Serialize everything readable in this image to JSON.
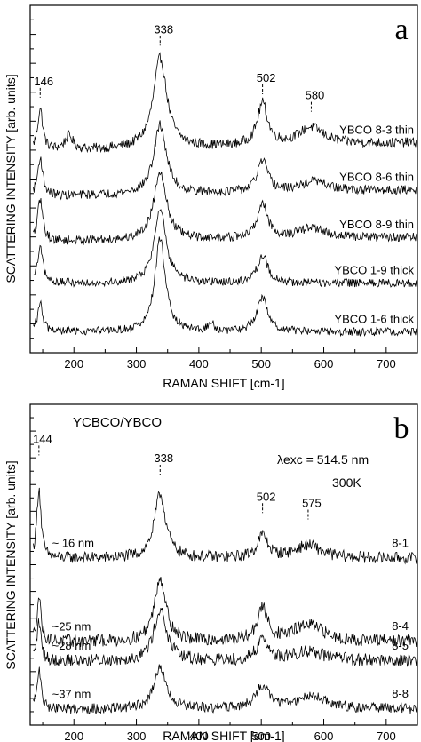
{
  "chart_data": [
    {
      "type": "line",
      "panel_label": "a",
      "xlabel": "RAMAN SHIFT [cm-1]",
      "ylabel": "SCATTERING INTENSITY [arb. units]",
      "xlim": [
        130,
        750
      ],
      "ylim": [
        0,
        100
      ],
      "x_ticks": [
        200,
        300,
        400,
        500,
        600,
        700
      ],
      "grid": false,
      "legend": "none",
      "peak_labels": [
        {
          "x": 146,
          "label": "146",
          "y": 77
        },
        {
          "x": 338,
          "label": "338",
          "y": 92
        },
        {
          "x": 502,
          "label": "502",
          "y": 78
        },
        {
          "x": 580,
          "label": "580",
          "y": 73
        }
      ],
      "series": [
        {
          "name": "YBCO 8-3 thin",
          "baseline": 58,
          "peaks": [
            [
              146,
              12,
              5
            ],
            [
              192,
              4,
              8
            ],
            [
              338,
              26,
              13
            ],
            [
              502,
              12,
              10
            ],
            [
              580,
              5,
              25
            ]
          ],
          "slope": 0.004,
          "noise": 1.4
        },
        {
          "name": "YBCO 8-6 thin",
          "baseline": 45,
          "peaks": [
            [
              146,
              11,
              5
            ],
            [
              338,
              20,
              12
            ],
            [
              502,
              9,
              10
            ],
            [
              585,
              3,
              25
            ]
          ],
          "slope": 0.003,
          "noise": 1.3
        },
        {
          "name": "YBCO 8-9 thin",
          "baseline": 32,
          "peaks": [
            [
              146,
              12,
              5
            ],
            [
              338,
              20,
              12
            ],
            [
              502,
              10,
              10
            ],
            [
              580,
              3,
              25
            ]
          ],
          "slope": 0.002,
          "noise": 1.3
        },
        {
          "name": "YBCO 1-9 thick",
          "baseline": 20,
          "peaks": [
            [
              146,
              10,
              5
            ],
            [
              338,
              22,
              11
            ],
            [
              502,
              8,
              10
            ]
          ],
          "slope": 0.0,
          "noise": 1.2
        },
        {
          "name": "YBCO 1-6 thick",
          "baseline": 6,
          "peaks": [
            [
              146,
              8,
              5
            ],
            [
              338,
              27,
              10
            ],
            [
              420,
              2,
              6
            ],
            [
              502,
              10,
              10
            ]
          ],
          "slope": 0.0,
          "noise": 1.2
        }
      ]
    },
    {
      "type": "line",
      "panel_label": "b",
      "title": "YCBCO/YBCO",
      "annotation": "λexc = 514.5 nm",
      "annotation_temp": "300K",
      "xlabel": "RAMAN SHIFT [cm-1]",
      "ylabel": "SCATTERING INTENSITY [arb. units]",
      "xlim": [
        130,
        750
      ],
      "ylim": [
        0,
        100
      ],
      "x_ticks": [
        200,
        300,
        400,
        500,
        600,
        700
      ],
      "grid": false,
      "legend": "none",
      "peak_labels": [
        {
          "x": 144,
          "label": "144",
          "y": 88
        },
        {
          "x": 338,
          "label": "338",
          "y": 82
        },
        {
          "x": 502,
          "label": "502",
          "y": 70
        },
        {
          "x": 575,
          "label": "575",
          "y": 68
        }
      ],
      "series": [
        {
          "name": "8-1",
          "thickness": "~ 16 nm",
          "baseline": 52,
          "peaks": [
            [
              144,
              22,
              4
            ],
            [
              338,
              20,
              11
            ],
            [
              502,
              7,
              10
            ],
            [
              575,
              4,
              25
            ]
          ],
          "slope": 0.0,
          "noise": 1.8
        },
        {
          "name": "8-4",
          "thickness": "~25 nm",
          "baseline": 26,
          "peaks": [
            [
              144,
              14,
              4
            ],
            [
              338,
              20,
              11
            ],
            [
              502,
              10,
              10
            ],
            [
              575,
              5,
              30
            ]
          ],
          "slope": 0.0,
          "noise": 2.0
        },
        {
          "name": "8-5",
          "thickness": "~28 nm",
          "baseline": 20,
          "peaks": [
            [
              144,
              12,
              4
            ],
            [
              338,
              16,
              12
            ],
            [
              502,
              7,
              10
            ],
            [
              575,
              3,
              30
            ]
          ],
          "slope": 0.0,
          "noise": 2.0
        },
        {
          "name": "8-8",
          "thickness": "~37 nm",
          "baseline": 5,
          "peaks": [
            [
              144,
              12,
              4
            ],
            [
              338,
              13,
              11
            ],
            [
              502,
              7,
              12
            ],
            [
              580,
              4,
              30
            ]
          ],
          "slope": 0.0,
          "noise": 1.6
        }
      ]
    }
  ]
}
